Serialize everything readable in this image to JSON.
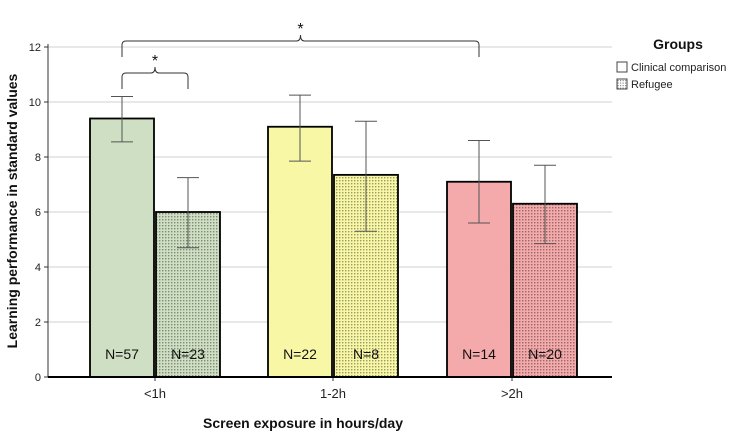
{
  "chart_data": {
    "type": "bar",
    "xlabel": "Screen exposure in hours/day",
    "ylabel": "Learning performance in standard values",
    "ylim": [
      0,
      12
    ],
    "yticks": [
      0,
      2,
      4,
      6,
      8,
      10,
      12
    ],
    "grid": true,
    "categories": [
      "<1h",
      "1-2h",
      ">2h"
    ],
    "category_colors": [
      "#cfdfc3",
      "#f8f7a6",
      "#f4a9aa"
    ],
    "series": [
      {
        "name": "Clinical comparison",
        "pattern": "solid",
        "values": [
          9.4,
          9.1,
          7.1
        ],
        "error_low": [
          8.55,
          7.85,
          5.6
        ],
        "error_high": [
          10.2,
          10.25,
          8.6
        ],
        "n_labels": [
          "N=57",
          "N=22",
          "N=14"
        ]
      },
      {
        "name": "Refugee",
        "pattern": "dotted",
        "values": [
          6.0,
          7.35,
          6.3
        ],
        "error_low": [
          4.7,
          5.3,
          4.85
        ],
        "error_high": [
          7.25,
          9.3,
          7.7
        ],
        "n_labels": [
          "N=23",
          "N=8",
          "N=20"
        ]
      }
    ],
    "legend": {
      "title": "Groups",
      "placement": "right"
    },
    "annotations": [
      {
        "label": "*",
        "type": "bracket",
        "from": "<1h / Clinical comparison",
        "to": "<1h / Refugee"
      },
      {
        "label": "*",
        "type": "bracket",
        "from": "<1h / Clinical comparison",
        "to": ">2h / Clinical comparison"
      }
    ]
  }
}
